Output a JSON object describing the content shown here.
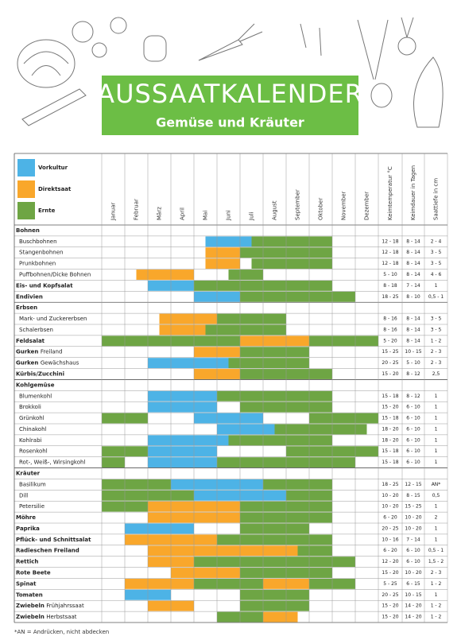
{
  "header": {
    "title": "AUSSAATKALENDER",
    "subtitle": "Gemüse und Kräuter"
  },
  "legend": [
    {
      "name": "Vorkultur",
      "color": "#4db3e6"
    },
    {
      "name": "Direktsaat",
      "color": "#f9a72b"
    },
    {
      "name": "Ernte",
      "color": "#6ea544"
    }
  ],
  "months": [
    "Januar",
    "Februar",
    "März",
    "April",
    "Mai",
    "Juni",
    "Juli",
    "August",
    "September",
    "Oktober",
    "November",
    "Dezember"
  ],
  "columns": [
    "Keimtemperatur °C",
    "Keimdauer in Tagen",
    "Saattiefe in cm"
  ],
  "rows": [
    {
      "label": "Bohnen",
      "group": true
    },
    {
      "label": "Buschbohnen",
      "indent": true,
      "temp": "12 - 18",
      "days": "8 - 14",
      "depth": "2 - 4",
      "periods": [
        [
          0,
          4.5,
          6.5
        ],
        [
          2,
          6.5,
          10
        ]
      ]
    },
    {
      "label": "Stangenbohnen",
      "indent": true,
      "temp": "12 - 18",
      "days": "8 - 14",
      "depth": "3 - 5",
      "periods": [
        [
          1,
          4.5,
          6
        ],
        [
          2,
          6,
          10
        ]
      ]
    },
    {
      "label": "Prunkbohnen",
      "indent": true,
      "temp": "12 - 18",
      "days": "8 - 14",
      "depth": "3 - 5",
      "periods": [
        [
          1,
          4.5,
          6
        ],
        [
          2,
          6.5,
          10
        ]
      ]
    },
    {
      "label": "Puffbohnen/Dicke Bohnen",
      "indent": true,
      "temp": "5 - 10",
      "days": "8 - 14",
      "depth": "4 - 6",
      "periods": [
        [
          1,
          1.5,
          4
        ],
        [
          2,
          5.5,
          7
        ]
      ]
    },
    {
      "label": "Eis- und Kopfsalat",
      "temp": "8 - 18",
      "days": "7 - 14",
      "depth": "1",
      "periods": [
        [
          0,
          2,
          4
        ],
        [
          2,
          4,
          10
        ]
      ]
    },
    {
      "label": "Endivien",
      "temp": "18 - 25",
      "days": "8 - 10",
      "depth": "0,5 - 1",
      "periods": [
        [
          0,
          4,
          6
        ],
        [
          2,
          6,
          11
        ]
      ]
    },
    {
      "label": "Erbsen",
      "group": true
    },
    {
      "label": "Mark- und Zuckererbsen",
      "indent": true,
      "temp": "8 - 16",
      "days": "8 - 14",
      "depth": "3 - 5",
      "periods": [
        [
          1,
          2.5,
          5
        ],
        [
          2,
          5,
          8
        ]
      ]
    },
    {
      "label": "Schalerbsen",
      "indent": true,
      "temp": "8 - 16",
      "days": "8 - 14",
      "depth": "3 - 5",
      "periods": [
        [
          1,
          2.5,
          4.5
        ],
        [
          2,
          4.5,
          8
        ]
      ]
    },
    {
      "label": "Feldsalat",
      "temp": "5 - 20",
      "days": "8 - 14",
      "depth": "1 - 2",
      "periods": [
        [
          2,
          0,
          6
        ],
        [
          1,
          6,
          9
        ],
        [
          2,
          9,
          12
        ]
      ]
    },
    {
      "label": "Gurken",
      "detail": "Freiland",
      "temp": "15 - 25",
      "days": "10 - 15",
      "depth": "2 - 3",
      "periods": [
        [
          1,
          4,
          6
        ],
        [
          2,
          6,
          9
        ]
      ]
    },
    {
      "label": "Gurken",
      "detail": "Gewächshaus",
      "temp": "20 - 25",
      "days": "5 - 10",
      "depth": "2 - 3",
      "periods": [
        [
          0,
          2,
          5.5
        ],
        [
          2,
          5.5,
          9
        ]
      ]
    },
    {
      "label": "Kürbis/Zucchini",
      "temp": "15 - 20",
      "days": "8 - 12",
      "depth": "2,5",
      "periods": [
        [
          1,
          4,
          6
        ],
        [
          2,
          6,
          10
        ]
      ]
    },
    {
      "label": "Kohlgemüse",
      "group": true
    },
    {
      "label": "Blumenkohl",
      "indent": true,
      "temp": "15 - 18",
      "days": "8 - 12",
      "depth": "1",
      "periods": [
        [
          0,
          2,
          5
        ],
        [
          2,
          5,
          10
        ]
      ]
    },
    {
      "label": "Brokkoli",
      "indent": true,
      "temp": "15 - 20",
      "days": "6 - 10",
      "depth": "1",
      "periods": [
        [
          0,
          2,
          5
        ],
        [
          2,
          6,
          10
        ]
      ]
    },
    {
      "label": "Grünkohl",
      "indent": true,
      "temp": "15 - 18",
      "days": "6 - 10",
      "depth": "1",
      "periods": [
        [
          2,
          0,
          2
        ],
        [
          0,
          4,
          7
        ],
        [
          2,
          9,
          12
        ]
      ]
    },
    {
      "label": "Chinakohl",
      "indent": true,
      "temp": "18 - 20",
      "days": "6 - 10",
      "depth": "1",
      "periods": [
        [
          0,
          5,
          7.5
        ],
        [
          2,
          7.5,
          11.5
        ]
      ]
    },
    {
      "label": "Kohlrabi",
      "indent": true,
      "temp": "18 - 20",
      "days": "6 - 10",
      "depth": "1",
      "periods": [
        [
          0,
          2,
          5.5
        ],
        [
          2,
          5.5,
          10
        ]
      ]
    },
    {
      "label": "Rosenkohl",
      "indent": true,
      "temp": "15 - 18",
      "days": "6 - 10",
      "depth": "1",
      "periods": [
        [
          2,
          0,
          2
        ],
        [
          0,
          2,
          5
        ],
        [
          2,
          8,
          12
        ]
      ]
    },
    {
      "label": "Rot-, Weiß-, Wirsingkohl",
      "indent": true,
      "temp": "15 - 18",
      "days": "6 - 10",
      "depth": "1",
      "periods": [
        [
          2,
          0,
          1
        ],
        [
          0,
          2,
          5
        ],
        [
          2,
          5,
          11
        ]
      ]
    },
    {
      "label": "Kräuter",
      "group": true
    },
    {
      "label": "Basilikum",
      "indent": true,
      "temp": "18 - 25",
      "days": "12 - 15",
      "depth": "AN*",
      "periods": [
        [
          2,
          0,
          3
        ],
        [
          0,
          3,
          7
        ],
        [
          2,
          7,
          10
        ]
      ]
    },
    {
      "label": "Dill",
      "indent": true,
      "temp": "10 - 20",
      "days": "8 - 15",
      "depth": "0,5",
      "periods": [
        [
          2,
          0,
          4
        ],
        [
          0,
          4,
          8
        ],
        [
          2,
          8,
          10
        ]
      ]
    },
    {
      "label": "Petersilie",
      "indent": true,
      "temp": "10 - 20",
      "days": "15 - 25",
      "depth": "1",
      "periods": [
        [
          2,
          0,
          2
        ],
        [
          1,
          2,
          6
        ],
        [
          2,
          6,
          10
        ]
      ]
    },
    {
      "label": "Möhre",
      "temp": "6 - 20",
      "days": "10 - 20",
      "depth": "2",
      "periods": [
        [
          1,
          2,
          6
        ],
        [
          2,
          6,
          10
        ]
      ]
    },
    {
      "label": "Paprika",
      "temp": "20 - 25",
      "days": "10 - 20",
      "depth": "1",
      "periods": [
        [
          0,
          1,
          4
        ],
        [
          2,
          6,
          9
        ]
      ]
    },
    {
      "label": "Pflück- und Schnittsalat",
      "temp": "10 - 16",
      "days": "7 - 14",
      "depth": "1",
      "periods": [
        [
          1,
          1,
          5
        ],
        [
          2,
          5,
          10
        ]
      ]
    },
    {
      "label": "Radieschen Freiland",
      "temp": "6 - 20",
      "days": "6 - 10",
      "depth": "0,5 - 1",
      "periods": [
        [
          1,
          2,
          8.5
        ],
        [
          2,
          8.5,
          10
        ]
      ]
    },
    {
      "label": "Rettich",
      "temp": "12 - 20",
      "days": "6 - 10",
      "depth": "1,5 - 2",
      "periods": [
        [
          1,
          2,
          4
        ],
        [
          2,
          4,
          11
        ]
      ]
    },
    {
      "label": "Rote Beete",
      "temp": "15 - 20",
      "days": "10 - 20",
      "depth": "2 - 3",
      "periods": [
        [
          1,
          3,
          6
        ],
        [
          2,
          6,
          10
        ]
      ]
    },
    {
      "label": "Spinat",
      "temp": "5 - 25",
      "days": "6 - 15",
      "depth": "1 - 2",
      "periods": [
        [
          1,
          1,
          4
        ],
        [
          2,
          4,
          7
        ],
        [
          1,
          7,
          9
        ],
        [
          2,
          9,
          11
        ]
      ]
    },
    {
      "label": "Tomaten",
      "temp": "20 - 25",
      "days": "10 - 15",
      "depth": "1",
      "periods": [
        [
          0,
          1,
          3
        ],
        [
          2,
          6,
          9
        ]
      ]
    },
    {
      "label": "Zwiebeln",
      "detail": "Frühjahrssaat",
      "temp": "15 - 20",
      "days": "14 - 20",
      "depth": "1 - 2",
      "periods": [
        [
          1,
          2,
          4
        ],
        [
          2,
          6,
          9
        ]
      ]
    },
    {
      "label": "Zwiebeln",
      "detail": "Herbstsaat",
      "temp": "15 - 20",
      "days": "14 - 20",
      "depth": "1 - 2",
      "periods": [
        [
          2,
          5,
          7
        ],
        [
          1,
          7,
          8.5
        ]
      ]
    }
  ],
  "footnote": "*AN = Andrücken, nicht abdecken"
}
